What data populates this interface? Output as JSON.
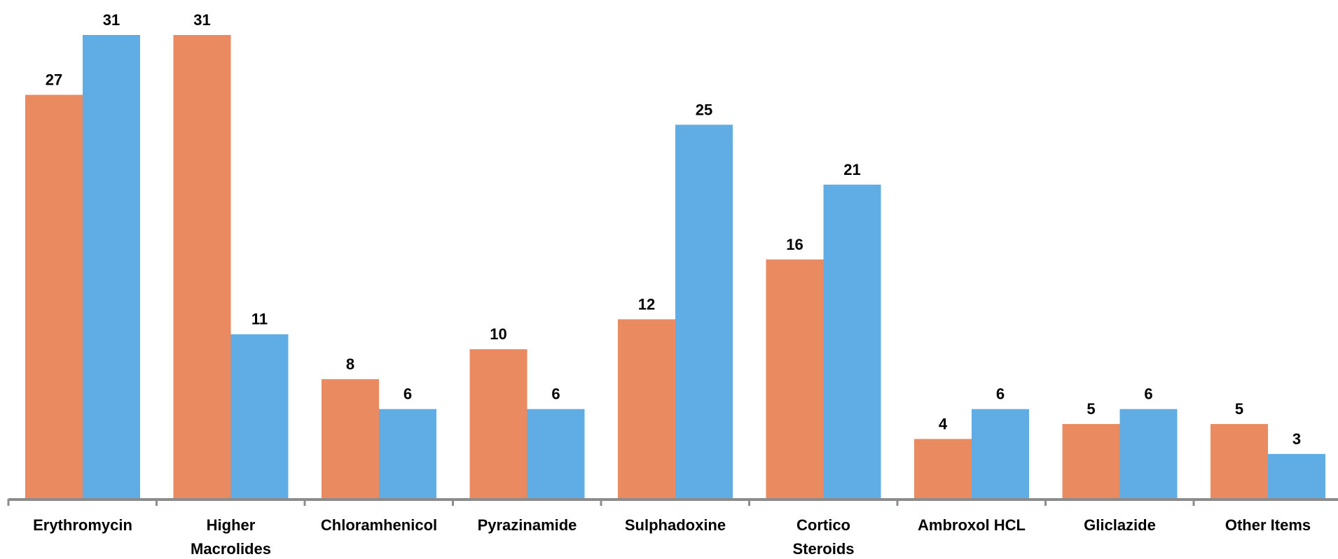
{
  "chart_data": {
    "type": "bar",
    "categories": [
      [
        "Erythromycin"
      ],
      [
        "Higher",
        "Macrolides"
      ],
      [
        "Chloramhenicol"
      ],
      [
        "Pyrazinamide"
      ],
      [
        "Sulphadoxine"
      ],
      [
        "Cortico",
        "Steroids"
      ],
      [
        "Ambroxol HCL"
      ],
      [
        "Gliclazide"
      ],
      [
        "Other Items"
      ]
    ],
    "series": [
      {
        "values": [
          27,
          31,
          8,
          10,
          12,
          16,
          4,
          5,
          5
        ],
        "color": "#E98A61"
      },
      {
        "values": [
          31,
          11,
          6,
          6,
          25,
          21,
          6,
          6,
          3
        ],
        "color": "#60ACE4"
      }
    ],
    "ylim": [
      0,
      31
    ],
    "grid": false,
    "axis_color": "#8C8C8C"
  }
}
